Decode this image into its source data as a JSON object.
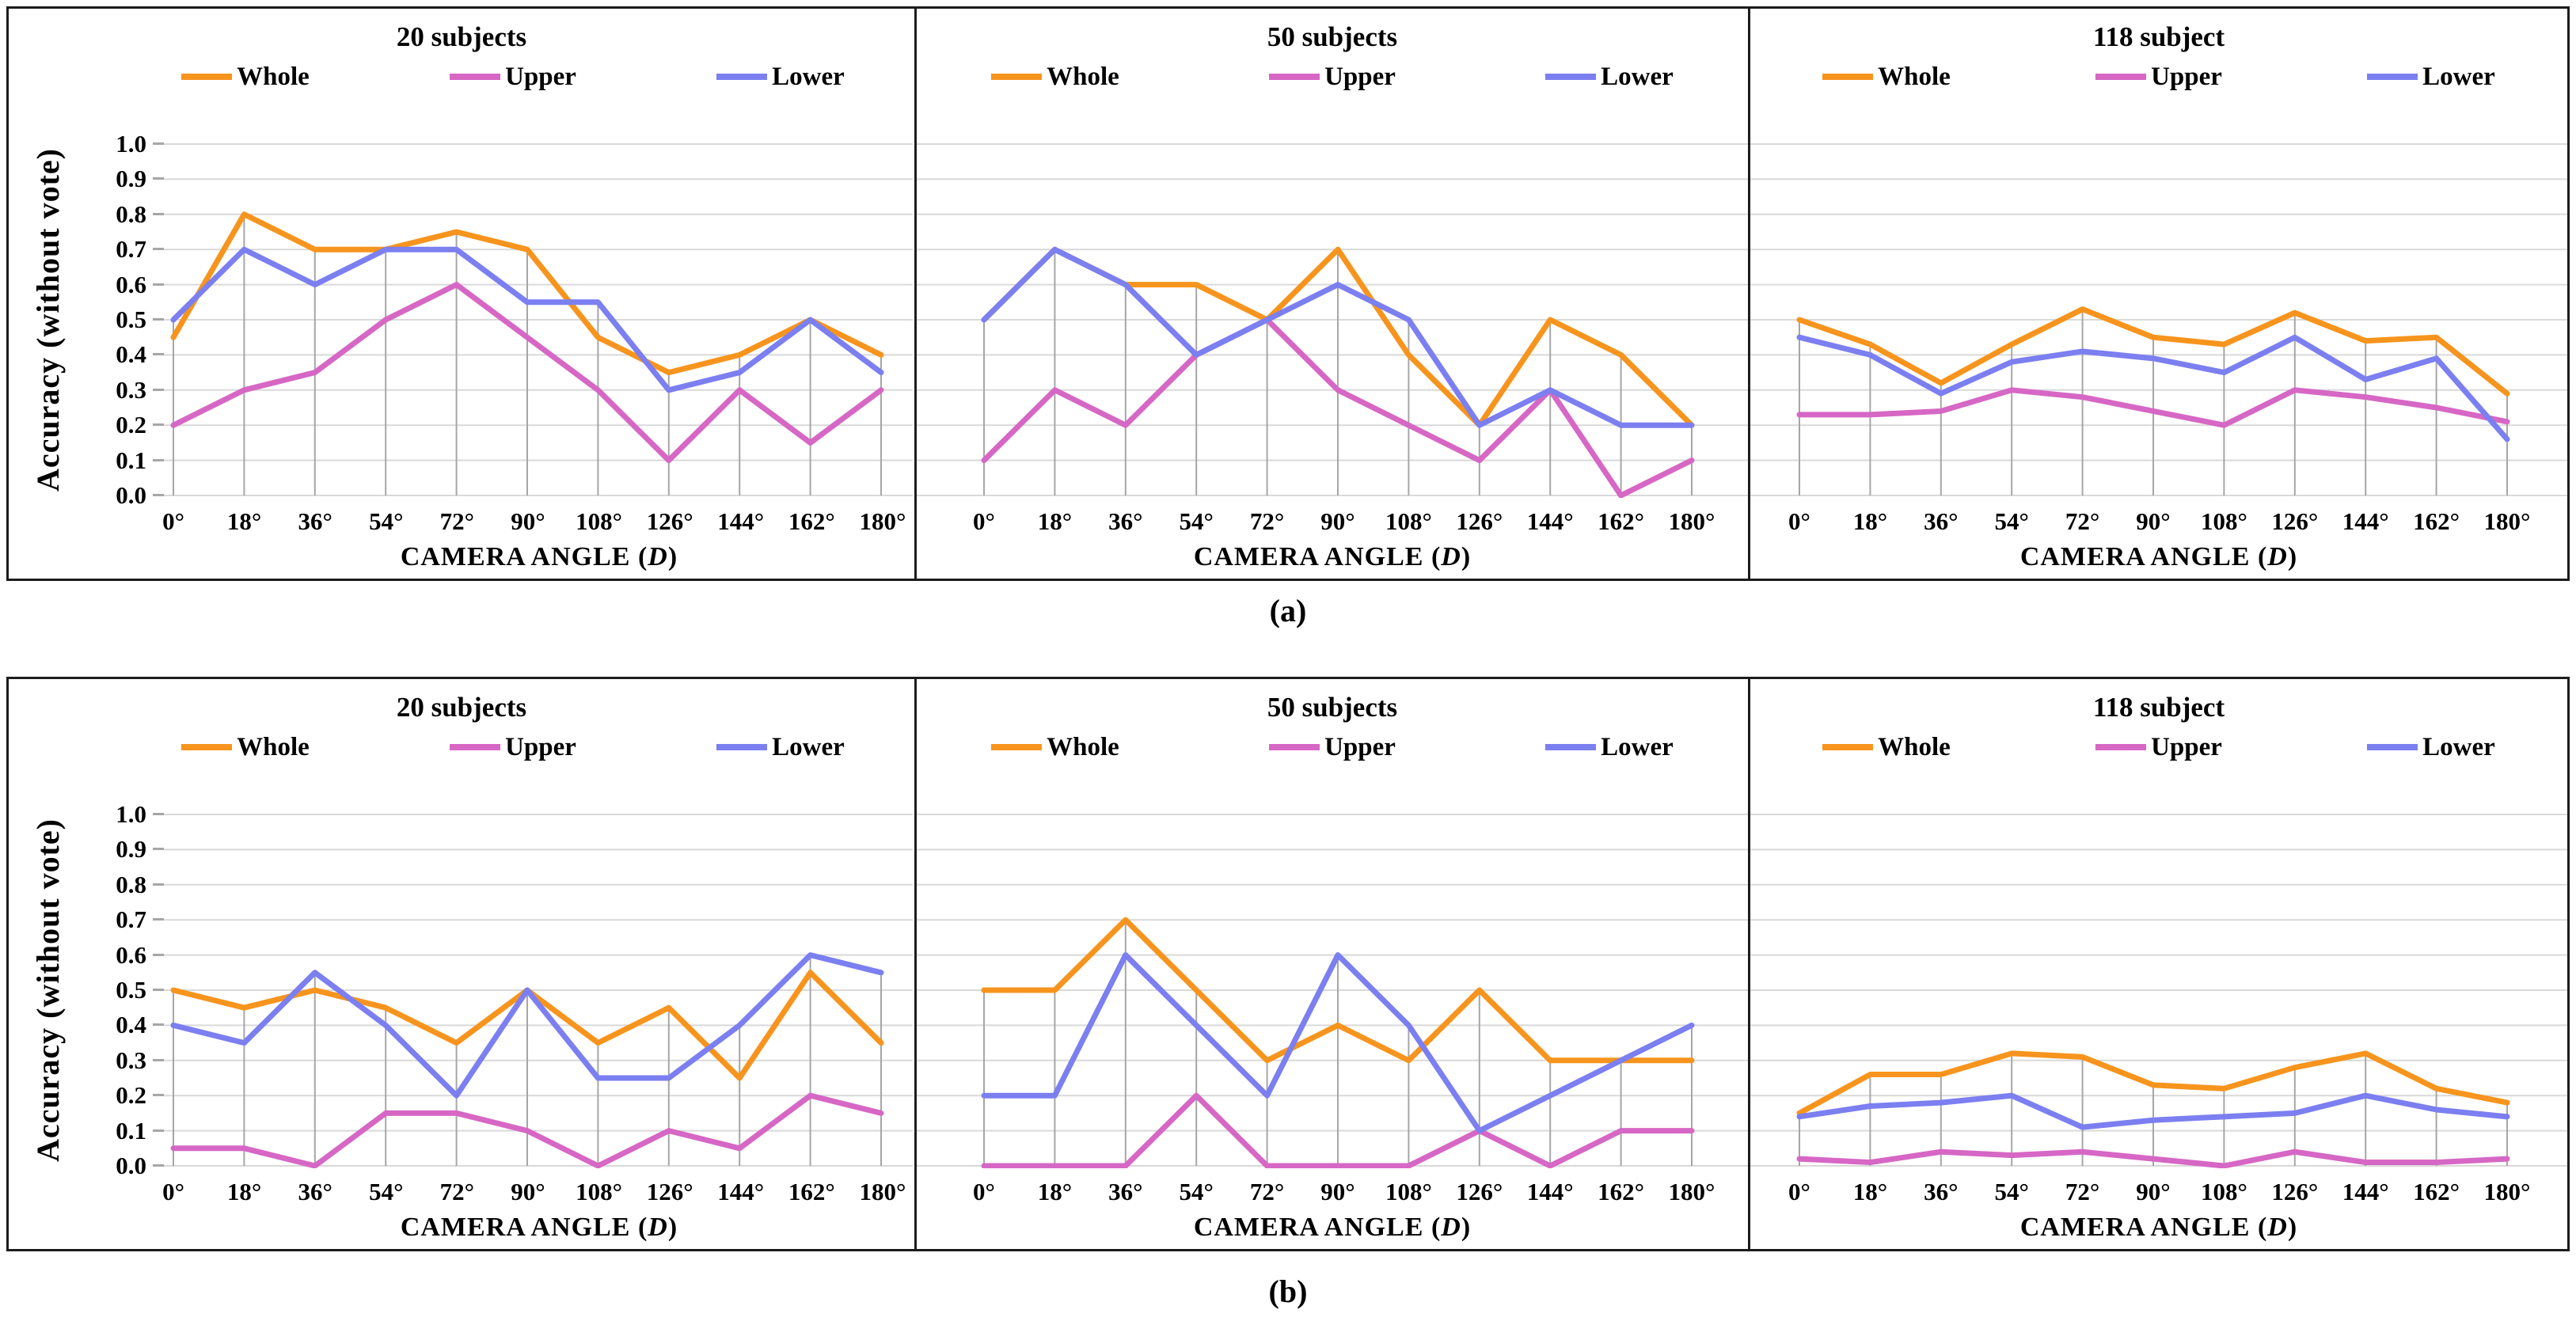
{
  "figure": {
    "captions": [
      "(a)",
      "(b)"
    ],
    "colors": {
      "whole": "#F7941D",
      "upper": "#D667C5",
      "lower": "#7B7FF0",
      "gridline": "#D9D9D9",
      "dropline": "#A6A6A6"
    },
    "axis": {
      "ylabel": "Accuracy (without vote)",
      "xlabel": "CAMERA ANGLE (D)",
      "yticks": [
        "1.0",
        "0.9",
        "0.8",
        "0.7",
        "0.6",
        "0.5",
        "0.4",
        "0.3",
        "0.2",
        "0.1",
        "0.0"
      ]
    }
  },
  "chart_data": [
    {
      "panel": "a",
      "type": "line",
      "title": "20 subjects",
      "xlabel": "CAMERA ANGLE (D)",
      "ylabel": "Accuracy (without vote)",
      "ylim": [
        0.0,
        1.0
      ],
      "grid": true,
      "legend_position": "top",
      "categories": [
        "0°",
        "18°",
        "36°",
        "54°",
        "72°",
        "90°",
        "108°",
        "126°",
        "144°",
        "162°",
        "180°"
      ],
      "series": [
        {
          "name": "Whole",
          "values": [
            0.45,
            0.8,
            0.7,
            0.7,
            0.75,
            0.7,
            0.45,
            0.35,
            0.4,
            0.5,
            0.4
          ]
        },
        {
          "name": "Upper",
          "values": [
            0.2,
            0.3,
            0.35,
            0.5,
            0.6,
            0.45,
            0.3,
            0.1,
            0.3,
            0.15,
            0.3
          ]
        },
        {
          "name": "Lower",
          "values": [
            0.5,
            0.7,
            0.6,
            0.7,
            0.7,
            0.55,
            0.55,
            0.3,
            0.35,
            0.5,
            0.35
          ]
        }
      ]
    },
    {
      "panel": "a",
      "type": "line",
      "title": "50 subjects",
      "xlabel": "CAMERA ANGLE (D)",
      "ylabel": "Accuracy (without vote)",
      "ylim": [
        0.0,
        1.0
      ],
      "grid": true,
      "legend_position": "top",
      "categories": [
        "0°",
        "18°",
        "36°",
        "54°",
        "72°",
        "90°",
        "108°",
        "126°",
        "144°",
        "162°",
        "180°"
      ],
      "series": [
        {
          "name": "Whole",
          "values": [
            0.5,
            0.7,
            0.6,
            0.6,
            0.5,
            0.7,
            0.4,
            0.2,
            0.5,
            0.4,
            0.2
          ]
        },
        {
          "name": "Upper",
          "values": [
            0.1,
            0.3,
            0.2,
            0.4,
            0.5,
            0.3,
            0.2,
            0.1,
            0.3,
            0.0,
            0.1
          ]
        },
        {
          "name": "Lower",
          "values": [
            0.5,
            0.7,
            0.6,
            0.4,
            0.5,
            0.6,
            0.5,
            0.2,
            0.3,
            0.2,
            0.2
          ]
        }
      ]
    },
    {
      "panel": "a",
      "type": "line",
      "title": "118 subject",
      "xlabel": "CAMERA ANGLE (D)",
      "ylabel": "Accuracy (without vote)",
      "ylim": [
        0.0,
        1.0
      ],
      "grid": true,
      "legend_position": "top",
      "categories": [
        "0°",
        "18°",
        "36°",
        "54°",
        "72°",
        "90°",
        "108°",
        "126°",
        "144°",
        "162°",
        "180°"
      ],
      "series": [
        {
          "name": "Whole",
          "values": [
            0.5,
            0.43,
            0.32,
            0.43,
            0.53,
            0.45,
            0.43,
            0.52,
            0.44,
            0.45,
            0.29
          ]
        },
        {
          "name": "Upper",
          "values": [
            0.23,
            0.23,
            0.24,
            0.3,
            0.28,
            0.24,
            0.2,
            0.3,
            0.28,
            0.25,
            0.21
          ]
        },
        {
          "name": "Lower",
          "values": [
            0.45,
            0.4,
            0.29,
            0.38,
            0.41,
            0.39,
            0.35,
            0.45,
            0.33,
            0.39,
            0.16
          ]
        }
      ]
    },
    {
      "panel": "b",
      "type": "line",
      "title": "20 subjects",
      "xlabel": "CAMERA ANGLE (D)",
      "ylabel": "Accuracy (without vote)",
      "ylim": [
        0.0,
        1.0
      ],
      "grid": true,
      "legend_position": "top",
      "categories": [
        "0°",
        "18°",
        "36°",
        "54°",
        "72°",
        "90°",
        "108°",
        "126°",
        "144°",
        "162°",
        "180°"
      ],
      "series": [
        {
          "name": "Whole",
          "values": [
            0.5,
            0.45,
            0.5,
            0.45,
            0.35,
            0.5,
            0.35,
            0.45,
            0.25,
            0.55,
            0.35
          ]
        },
        {
          "name": "Upper",
          "values": [
            0.05,
            0.05,
            0.0,
            0.15,
            0.15,
            0.1,
            0.0,
            0.1,
            0.05,
            0.2,
            0.15
          ]
        },
        {
          "name": "Lower",
          "values": [
            0.4,
            0.35,
            0.55,
            0.4,
            0.2,
            0.5,
            0.25,
            0.25,
            0.4,
            0.6,
            0.55
          ]
        }
      ]
    },
    {
      "panel": "b",
      "type": "line",
      "title": "50 subjects",
      "xlabel": "CAMERA ANGLE (D)",
      "ylabel": "Accuracy (without vote)",
      "ylim": [
        0.0,
        1.0
      ],
      "grid": true,
      "legend_position": "top",
      "categories": [
        "0°",
        "18°",
        "36°",
        "54°",
        "72°",
        "90°",
        "108°",
        "126°",
        "144°",
        "162°",
        "180°"
      ],
      "series": [
        {
          "name": "Whole",
          "values": [
            0.5,
            0.5,
            0.7,
            0.5,
            0.3,
            0.4,
            0.3,
            0.5,
            0.3,
            0.3,
            0.3
          ]
        },
        {
          "name": "Upper",
          "values": [
            0.0,
            0.0,
            0.0,
            0.2,
            0.0,
            0.0,
            0.0,
            0.1,
            0.0,
            0.1,
            0.1
          ]
        },
        {
          "name": "Lower",
          "values": [
            0.2,
            0.2,
            0.6,
            0.4,
            0.2,
            0.6,
            0.4,
            0.1,
            0.2,
            0.3,
            0.4
          ]
        }
      ]
    },
    {
      "panel": "b",
      "type": "line",
      "title": "118 subject",
      "xlabel": "CAMERA ANGLE (D)",
      "ylabel": "Accuracy (without vote)",
      "ylim": [
        0.0,
        1.0
      ],
      "grid": true,
      "legend_position": "top",
      "categories": [
        "0°",
        "18°",
        "36°",
        "54°",
        "72°",
        "90°",
        "108°",
        "126°",
        "144°",
        "162°",
        "180°"
      ],
      "series": [
        {
          "name": "Whole",
          "values": [
            0.15,
            0.26,
            0.26,
            0.32,
            0.31,
            0.23,
            0.22,
            0.28,
            0.32,
            0.22,
            0.18
          ]
        },
        {
          "name": "Upper",
          "values": [
            0.02,
            0.01,
            0.04,
            0.03,
            0.04,
            0.02,
            0.0,
            0.04,
            0.01,
            0.01,
            0.02
          ]
        },
        {
          "name": "Lower",
          "values": [
            0.14,
            0.17,
            0.18,
            0.2,
            0.11,
            0.13,
            0.14,
            0.15,
            0.2,
            0.16,
            0.14
          ]
        }
      ]
    }
  ]
}
